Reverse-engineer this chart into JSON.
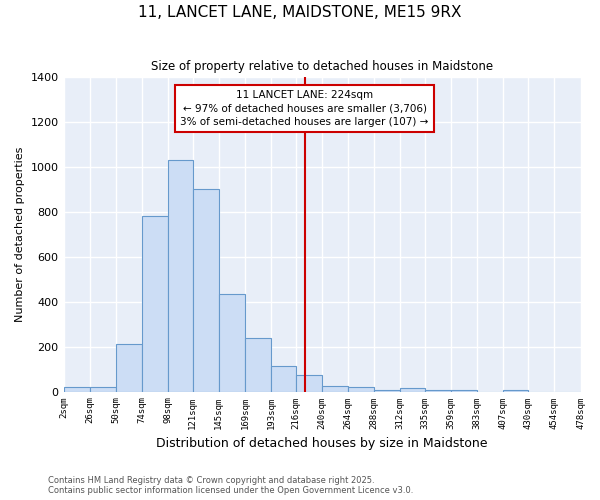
{
  "title": "11, LANCET LANE, MAIDSTONE, ME15 9RX",
  "subtitle": "Size of property relative to detached houses in Maidstone",
  "xlabel": "Distribution of detached houses by size in Maidstone",
  "ylabel": "Number of detached properties",
  "bar_color": "#ccddf5",
  "bar_edge_color": "#6699cc",
  "plot_bg_color": "#e8eef8",
  "fig_bg_color": "#ffffff",
  "grid_color": "#ffffff",
  "vline_color": "#cc0000",
  "vline_x": 224,
  "annotation_title": "11 LANCET LANE: 224sqm",
  "annotation_line1": "← 97% of detached houses are smaller (3,706)",
  "annotation_line2": "3% of semi-detached houses are larger (107) →",
  "annotation_box_color": "#ffffff",
  "annotation_box_edge": "#cc0000",
  "bin_edges": [
    2,
    26,
    50,
    74,
    98,
    121,
    145,
    169,
    193,
    216,
    240,
    264,
    288,
    312,
    335,
    359,
    383,
    407,
    430,
    454,
    478
  ],
  "bin_heights": [
    20,
    20,
    210,
    780,
    1030,
    900,
    435,
    240,
    115,
    75,
    25,
    20,
    5,
    15,
    5,
    5,
    0,
    5,
    0,
    0
  ],
  "ylim": [
    0,
    1400
  ],
  "yticks": [
    0,
    200,
    400,
    600,
    800,
    1000,
    1200,
    1400
  ],
  "tick_labels": [
    "2sqm",
    "26sqm",
    "50sqm",
    "74sqm",
    "98sqm",
    "121sqm",
    "145sqm",
    "169sqm",
    "193sqm",
    "216sqm",
    "240sqm",
    "264sqm",
    "288sqm",
    "312sqm",
    "335sqm",
    "359sqm",
    "383sqm",
    "407sqm",
    "430sqm",
    "454sqm",
    "478sqm"
  ],
  "footer1": "Contains HM Land Registry data © Crown copyright and database right 2025.",
  "footer2": "Contains public sector information licensed under the Open Government Licence v3.0."
}
